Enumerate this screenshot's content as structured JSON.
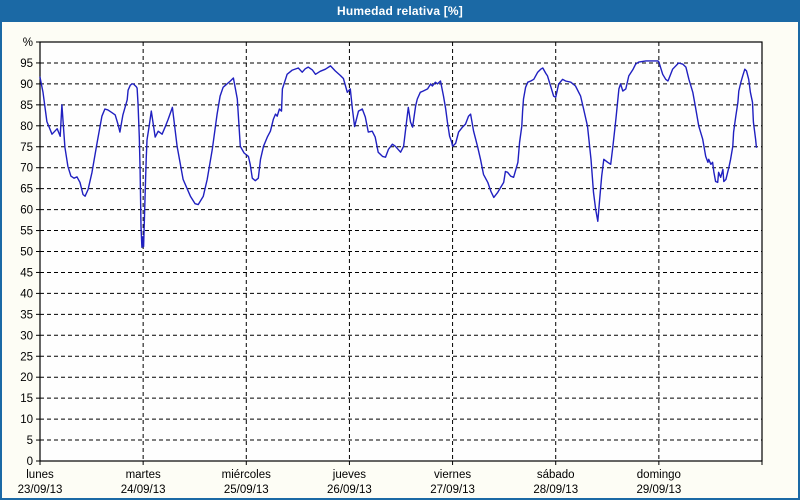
{
  "window": {
    "title": "Humedad relativa [%]"
  },
  "colors": {
    "frame": "#1b69a5",
    "titlebar_bg": "#1b69a5",
    "title_text": "#ffffff",
    "content_bg": "#fdfdf5",
    "plot_bg": "#fefefe",
    "grid": "#000000",
    "axis": "#000000",
    "line": "#2020c0",
    "label_text": "#000000"
  },
  "chart_data": {
    "type": "line",
    "title": "Humedad relativa [%]",
    "y_unit_label": "%",
    "ylim": [
      0,
      100
    ],
    "y_tick_step": 5,
    "y_tick_labels": [
      "0",
      "5",
      "10",
      "15",
      "20",
      "25",
      "30",
      "35",
      "40",
      "45",
      "50",
      "55",
      "60",
      "65",
      "70",
      "75",
      "80",
      "85",
      "90",
      "95"
    ],
    "x_hours_range": [
      0,
      168
    ],
    "x_day_width_hours": 24,
    "grid": "dashed",
    "legend": "none",
    "x_days": [
      {
        "name": "lunes",
        "date": "23/09/13"
      },
      {
        "name": "martes",
        "date": "24/09/13"
      },
      {
        "name": "miércoles",
        "date": "25/09/13"
      },
      {
        "name": "jueves",
        "date": "26/09/13"
      },
      {
        "name": "viernes",
        "date": "27/09/13"
      },
      {
        "name": "sábado",
        "date": "28/09/13"
      },
      {
        "name": "domingo",
        "date": "29/09/13"
      }
    ],
    "series": [
      {
        "name": "Humedad relativa",
        "color": "#2020c0",
        "points": [
          [
            0.0,
            91.6
          ],
          [
            0.7,
            88.0
          ],
          [
            1.6,
            81.0
          ],
          [
            2.8,
            78.0
          ],
          [
            4.0,
            79.3
          ],
          [
            4.7,
            77.5
          ],
          [
            5.1,
            85.0
          ],
          [
            5.8,
            74.9
          ],
          [
            6.5,
            70.3
          ],
          [
            7.2,
            68.0
          ],
          [
            7.9,
            67.5
          ],
          [
            8.6,
            67.8
          ],
          [
            9.3,
            66.5
          ],
          [
            10.0,
            63.6
          ],
          [
            10.5,
            63.2
          ],
          [
            11.2,
            64.8
          ],
          [
            12.1,
            68.9
          ],
          [
            13.3,
            76.1
          ],
          [
            14.4,
            82.3
          ],
          [
            15.1,
            84.0
          ],
          [
            15.8,
            83.8
          ],
          [
            16.8,
            83.1
          ],
          [
            17.5,
            82.6
          ],
          [
            18.2,
            80.2
          ],
          [
            18.6,
            78.5
          ],
          [
            19.3,
            82.6
          ],
          [
            20.3,
            86.2
          ],
          [
            20.5,
            88.5
          ],
          [
            21.0,
            89.7
          ],
          [
            21.4,
            90.0
          ],
          [
            21.7,
            90.0
          ],
          [
            22.4,
            89.3
          ],
          [
            22.6,
            89.0
          ],
          [
            22.8,
            85.4
          ],
          [
            23.1,
            77.3
          ],
          [
            23.3,
            69.4
          ],
          [
            23.5,
            56.0
          ],
          [
            23.7,
            51.0
          ],
          [
            23.9,
            53.5
          ],
          [
            24.1,
            51.2
          ],
          [
            24.5,
            65.0
          ],
          [
            24.7,
            72.0
          ],
          [
            24.9,
            76.6
          ],
          [
            25.4,
            80.0
          ],
          [
            25.9,
            83.5
          ],
          [
            26.8,
            77.3
          ],
          [
            27.5,
            78.7
          ],
          [
            28.4,
            78.0
          ],
          [
            29.1,
            79.7
          ],
          [
            29.8,
            81.5
          ],
          [
            30.8,
            84.4
          ],
          [
            31.9,
            75.1
          ],
          [
            33.3,
            67.2
          ],
          [
            35.0,
            63.2
          ],
          [
            36.1,
            61.4
          ],
          [
            36.8,
            61.2
          ],
          [
            38.0,
            63.2
          ],
          [
            38.9,
            67.2
          ],
          [
            40.1,
            74.4
          ],
          [
            41.2,
            82.8
          ],
          [
            41.9,
            87.1
          ],
          [
            42.6,
            89.2
          ],
          [
            44.3,
            90.7
          ],
          [
            45.0,
            91.4
          ],
          [
            45.9,
            86.4
          ],
          [
            46.6,
            75.1
          ],
          [
            47.5,
            73.5
          ],
          [
            48.5,
            72.7
          ],
          [
            48.9,
            70.8
          ],
          [
            49.4,
            67.5
          ],
          [
            50.1,
            66.9
          ],
          [
            50.8,
            67.5
          ],
          [
            51.3,
            72.0
          ],
          [
            52.0,
            75.1
          ],
          [
            52.9,
            77.3
          ],
          [
            53.6,
            78.7
          ],
          [
            54.3,
            81.6
          ],
          [
            54.8,
            82.8
          ],
          [
            55.2,
            82.3
          ],
          [
            55.7,
            84.0
          ],
          [
            56.2,
            83.5
          ],
          [
            56.4,
            88.8
          ],
          [
            57.1,
            91.0
          ],
          [
            57.5,
            92.3
          ],
          [
            58.7,
            93.3
          ],
          [
            60.1,
            93.8
          ],
          [
            61.0,
            92.8
          ],
          [
            61.7,
            93.6
          ],
          [
            62.4,
            94.0
          ],
          [
            63.4,
            93.3
          ],
          [
            64.1,
            92.3
          ],
          [
            65.2,
            93.0
          ],
          [
            66.4,
            93.5
          ],
          [
            67.6,
            94.3
          ],
          [
            68.7,
            93.1
          ],
          [
            69.9,
            92.0
          ],
          [
            70.6,
            91.3
          ],
          [
            71.5,
            88.0
          ],
          [
            72.2,
            88.8
          ],
          [
            72.7,
            84.0
          ],
          [
            73.2,
            79.8
          ],
          [
            74.1,
            83.5
          ],
          [
            75.0,
            84.0
          ],
          [
            75.7,
            82.1
          ],
          [
            76.4,
            78.5
          ],
          [
            77.3,
            78.7
          ],
          [
            78.0,
            77.3
          ],
          [
            78.7,
            73.7
          ],
          [
            79.7,
            72.7
          ],
          [
            80.4,
            72.5
          ],
          [
            81.1,
            74.4
          ],
          [
            82.0,
            75.6
          ],
          [
            82.7,
            75.1
          ],
          [
            83.9,
            73.7
          ],
          [
            84.6,
            75.1
          ],
          [
            85.3,
            81.1
          ],
          [
            85.7,
            84.4
          ],
          [
            86.2,
            80.9
          ],
          [
            86.7,
            79.7
          ],
          [
            87.4,
            84.7
          ],
          [
            87.8,
            86.4
          ],
          [
            88.5,
            88.0
          ],
          [
            89.2,
            88.3
          ],
          [
            90.2,
            88.8
          ],
          [
            90.9,
            90.0
          ],
          [
            91.3,
            89.5
          ],
          [
            92.0,
            90.4
          ],
          [
            92.5,
            90.0
          ],
          [
            93.2,
            90.7
          ],
          [
            93.9,
            87.1
          ],
          [
            94.4,
            84.0
          ],
          [
            94.8,
            80.9
          ],
          [
            95.3,
            77.5
          ],
          [
            95.8,
            76.1
          ],
          [
            96.0,
            75.1
          ],
          [
            96.7,
            75.8
          ],
          [
            97.4,
            78.5
          ],
          [
            98.3,
            79.7
          ],
          [
            99.0,
            80.4
          ],
          [
            99.7,
            82.3
          ],
          [
            100.2,
            82.8
          ],
          [
            100.9,
            78.7
          ],
          [
            101.8,
            75.1
          ],
          [
            102.5,
            72.0
          ],
          [
            103.2,
            68.4
          ],
          [
            104.2,
            66.5
          ],
          [
            104.9,
            64.4
          ],
          [
            105.6,
            62.9
          ],
          [
            106.5,
            64.1
          ],
          [
            107.2,
            65.3
          ],
          [
            107.9,
            66.5
          ],
          [
            108.3,
            69.1
          ],
          [
            108.8,
            68.9
          ],
          [
            109.5,
            68.0
          ],
          [
            110.2,
            67.7
          ],
          [
            111.2,
            71.3
          ],
          [
            111.6,
            76.1
          ],
          [
            112.1,
            79.9
          ],
          [
            112.3,
            83.5
          ],
          [
            112.5,
            86.4
          ],
          [
            113.0,
            89.2
          ],
          [
            113.5,
            90.4
          ],
          [
            114.2,
            90.7
          ],
          [
            114.9,
            91.1
          ],
          [
            115.8,
            92.8
          ],
          [
            116.5,
            93.5
          ],
          [
            117.0,
            93.8
          ],
          [
            117.7,
            92.5
          ],
          [
            118.1,
            91.9
          ],
          [
            118.8,
            89.5
          ],
          [
            119.5,
            87.1
          ],
          [
            120.0,
            86.8
          ],
          [
            120.7,
            90.0
          ],
          [
            121.6,
            91.1
          ],
          [
            122.3,
            90.7
          ],
          [
            123.5,
            90.4
          ],
          [
            124.6,
            89.5
          ],
          [
            125.8,
            87.1
          ],
          [
            126.5,
            84.0
          ],
          [
            127.4,
            79.9
          ],
          [
            128.2,
            72.0
          ],
          [
            128.8,
            64.1
          ],
          [
            129.3,
            60.0
          ],
          [
            129.8,
            57.2
          ],
          [
            130.2,
            62.0
          ],
          [
            130.7,
            68.0
          ],
          [
            131.2,
            72.0
          ],
          [
            132.1,
            71.3
          ],
          [
            132.8,
            70.8
          ],
          [
            133.3,
            75.1
          ],
          [
            134.0,
            81.6
          ],
          [
            134.7,
            88.8
          ],
          [
            135.1,
            90.0
          ],
          [
            135.6,
            88.3
          ],
          [
            136.3,
            88.8
          ],
          [
            137.0,
            91.9
          ],
          [
            138.0,
            93.5
          ],
          [
            138.6,
            94.7
          ],
          [
            139.3,
            95.2
          ],
          [
            141.0,
            95.5
          ],
          [
            142.6,
            95.5
          ],
          [
            143.8,
            95.5
          ],
          [
            144.0,
            95.2
          ],
          [
            144.9,
            92.3
          ],
          [
            145.6,
            91.1
          ],
          [
            146.1,
            90.7
          ],
          [
            146.3,
            91.1
          ],
          [
            147.2,
            93.5
          ],
          [
            148.6,
            95.0
          ],
          [
            149.6,
            94.7
          ],
          [
            150.3,
            94.0
          ],
          [
            151.0,
            91.1
          ],
          [
            151.9,
            88.0
          ],
          [
            152.6,
            84.0
          ],
          [
            153.3,
            79.9
          ],
          [
            154.2,
            76.8
          ],
          [
            154.9,
            72.7
          ],
          [
            155.4,
            71.3
          ],
          [
            155.6,
            72.0
          ],
          [
            156.1,
            70.8
          ],
          [
            156.5,
            71.3
          ],
          [
            156.8,
            68.9
          ],
          [
            157.2,
            66.7
          ],
          [
            157.7,
            66.5
          ],
          [
            157.9,
            68.9
          ],
          [
            158.4,
            67.7
          ],
          [
            158.9,
            69.6
          ],
          [
            159.1,
            66.7
          ],
          [
            159.6,
            67.2
          ],
          [
            160.3,
            70.1
          ],
          [
            160.7,
            72.0
          ],
          [
            161.2,
            75.1
          ],
          [
            161.4,
            78.5
          ],
          [
            161.9,
            82.3
          ],
          [
            162.4,
            85.6
          ],
          [
            162.6,
            88.3
          ],
          [
            163.1,
            90.4
          ],
          [
            163.5,
            91.9
          ],
          [
            164.0,
            93.5
          ],
          [
            164.4,
            93.1
          ],
          [
            164.9,
            91.1
          ],
          [
            165.3,
            88.0
          ],
          [
            165.8,
            85.6
          ],
          [
            166.0,
            80.9
          ],
          [
            166.5,
            76.8
          ],
          [
            166.7,
            74.9
          ]
        ]
      }
    ]
  }
}
